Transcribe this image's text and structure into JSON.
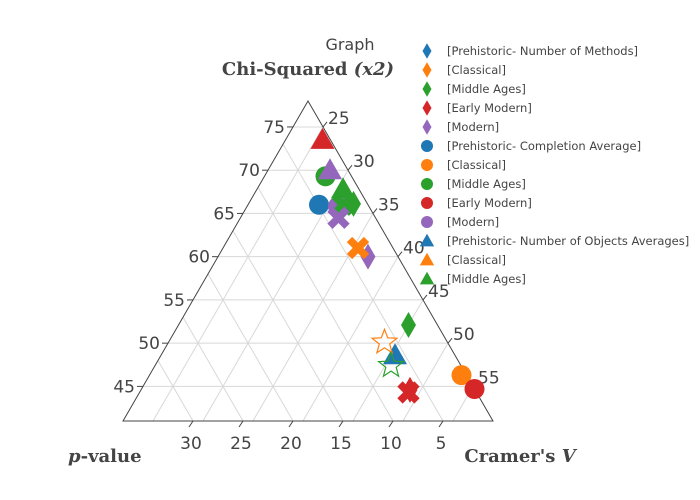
{
  "chart_data": {
    "type": "scatter",
    "subtype": "ternary",
    "title": "Graph",
    "axes": {
      "top": {
        "title": "Chi-Squared",
        "title_suffix": "(x2)",
        "ticks": [
          45,
          50,
          55,
          60,
          65,
          70,
          75
        ],
        "range": [
          41,
          78
        ]
      },
      "right": {
        "title": "Cramer's",
        "title_suffix": "V",
        "ticks": [
          25,
          30,
          35,
          40,
          45,
          50,
          55
        ],
        "range": [
          22,
          59
        ]
      },
      "left": {
        "title_prefix": "p",
        "title": "-value",
        "ticks": [
          5,
          10,
          15,
          20,
          25,
          30
        ],
        "range": [
          0,
          37
        ]
      }
    },
    "grid": true,
    "legend_position": "right",
    "series": [
      {
        "name": "[Prehistoric- Number of Methods]",
        "symbol": "diamond",
        "color": "#1f77b4",
        "filled": true,
        "points": []
      },
      {
        "name": "[Classical]",
        "symbol": "diamond",
        "color": "#ff7f0e",
        "filled": true,
        "points": []
      },
      {
        "name": "[Middle Ages]",
        "symbol": "diamond",
        "color": "#2ca02c",
        "filled": true,
        "points": [
          {
            "a": 52.1,
            "b": 45.0,
            "c": 2.9
          },
          {
            "a": 66.1,
            "b": 32.5,
            "c": 1.4
          }
        ]
      },
      {
        "name": "[Early Modern]",
        "symbol": "diamond",
        "color": "#d62728",
        "filled": true,
        "points": [
          {
            "a": 44.6,
            "b": 48.9,
            "c": 6.5
          }
        ]
      },
      {
        "name": "[Modern]",
        "symbol": "diamond",
        "color": "#9467bd",
        "filled": true,
        "points": [
          {
            "a": 60.0,
            "b": 37.0,
            "c": 3.0
          }
        ]
      },
      {
        "name": "[Prehistoric- Completion Average]",
        "symbol": "circle",
        "color": "#1f77b4",
        "filled": true,
        "points": [
          {
            "a": 66.0,
            "b": 29.1,
            "c": 4.9
          }
        ]
      },
      {
        "name": "[Classical]",
        "symbol": "circle",
        "color": "#ff7f0e",
        "filled": true,
        "points": [
          {
            "a": 46.3,
            "b": 53.2,
            "c": 0.5
          }
        ]
      },
      {
        "name": "[Middle Ages]",
        "symbol": "circle",
        "color": "#2ca02c",
        "filled": true,
        "points": [
          {
            "a": 69.3,
            "b": 28.1,
            "c": 2.6
          }
        ]
      },
      {
        "name": "[Early Modern]",
        "symbol": "circle",
        "color": "#d62728",
        "filled": true,
        "points": [
          {
            "a": 44.7,
            "b": 55.3,
            "c": 0.0
          }
        ]
      },
      {
        "name": "[Modern]",
        "symbol": "circle",
        "color": "#9467bd",
        "filled": true,
        "points": [
          {
            "a": 65.8,
            "b": 31.1,
            "c": 3.1
          }
        ]
      },
      {
        "name": "[Prehistoric- Number of Objects Averages]",
        "symbol": "triangle-up",
        "color": "#1f77b4",
        "filled": true,
        "points": [
          {
            "a": 48.6,
            "b": 45.4,
            "c": 6.0
          }
        ]
      },
      {
        "name": "[Classical]",
        "symbol": "triangle-up",
        "color": "#ff7f0e",
        "filled": true,
        "points": []
      },
      {
        "name": "[Middle Ages]",
        "symbol": "triangle-up",
        "color": "#2ca02c",
        "filled": true,
        "points": [
          {
            "a": 67.8,
            "b": 30.6,
            "c": 1.6
          }
        ]
      },
      {
        "name": "",
        "symbol": "triangle-up",
        "color": "#d62728",
        "filled": true,
        "points": [
          {
            "a": 73.5,
            "b": 25.7,
            "c": 0.8
          }
        ]
      },
      {
        "name": "",
        "symbol": "triangle-up",
        "color": "#9467bd",
        "filled": true,
        "points": [
          {
            "a": 70.0,
            "b": 28.2,
            "c": 1.8
          }
        ]
      },
      {
        "name": "",
        "symbol": "x",
        "color": "#ff7f0e",
        "filled": true,
        "points": [
          {
            "a": 61.0,
            "b": 35.5,
            "c": 3.5
          }
        ]
      },
      {
        "name": "",
        "symbol": "x",
        "color": "#2ca02c",
        "filled": true,
        "points": [
          {
            "a": 66.0,
            "b": 31.5,
            "c": 2.5
          }
        ]
      },
      {
        "name": "",
        "symbol": "x",
        "color": "#9467bd",
        "filled": true,
        "points": [
          {
            "a": 64.5,
            "b": 31.8,
            "c": 3.7
          }
        ]
      },
      {
        "name": "",
        "symbol": "x",
        "color": "#d62728",
        "filled": true,
        "points": [
          {
            "a": 44.3,
            "b": 48.9,
            "c": 6.8
          }
        ]
      },
      {
        "name": "",
        "symbol": "star",
        "color": "#ff7f0e",
        "filled": false,
        "points": [
          {
            "a": 50.1,
            "b": 43.6,
            "c": 6.3
          }
        ]
      },
      {
        "name": "",
        "symbol": "star",
        "color": "#2ca02c",
        "filled": false,
        "points": [
          {
            "a": 47.4,
            "b": 45.6,
            "c": 7.0
          }
        ]
      }
    ]
  }
}
